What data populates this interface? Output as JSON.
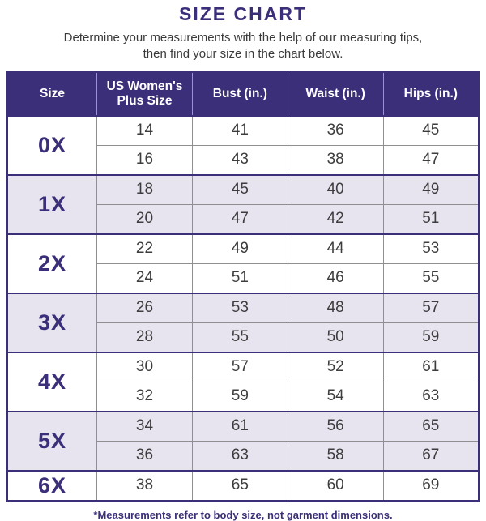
{
  "page": {
    "title": "SIZE CHART",
    "subtitle_line1": "Determine your measurements with the help of our measuring tips,",
    "subtitle_line2": "then find your size in the chart below.",
    "footnote": "*Measurements refer to body size, not garment dimensions."
  },
  "colors": {
    "accent": "#3B2F7A",
    "header_bg": "#3B2F7A",
    "header_text": "#FFFFFF",
    "alt_row_bg": "#E7E4EF",
    "grid_line": "#8F8F8F",
    "body_text": "#3D3D3D"
  },
  "chart_data": {
    "type": "table",
    "title": "SIZE CHART",
    "columns": [
      "Size",
      "US Women's Plus Size",
      "Bust (in.)",
      "Waist (in.)",
      "Hips (in.)"
    ],
    "groups": [
      {
        "size": "0X",
        "rows": [
          [
            14,
            41,
            36,
            45
          ],
          [
            16,
            43,
            38,
            47
          ]
        ]
      },
      {
        "size": "1X",
        "rows": [
          [
            18,
            45,
            40,
            49
          ],
          [
            20,
            47,
            42,
            51
          ]
        ]
      },
      {
        "size": "2X",
        "rows": [
          [
            22,
            49,
            44,
            53
          ],
          [
            24,
            51,
            46,
            55
          ]
        ]
      },
      {
        "size": "3X",
        "rows": [
          [
            26,
            53,
            48,
            57
          ],
          [
            28,
            55,
            50,
            59
          ]
        ]
      },
      {
        "size": "4X",
        "rows": [
          [
            30,
            57,
            52,
            61
          ],
          [
            32,
            59,
            54,
            63
          ]
        ]
      },
      {
        "size": "5X",
        "rows": [
          [
            34,
            61,
            56,
            65
          ],
          [
            36,
            63,
            58,
            67
          ]
        ]
      },
      {
        "size": "6X",
        "rows": [
          [
            38,
            65,
            60,
            69
          ]
        ]
      }
    ],
    "notes": "Groups with light lavender background: 1X, 3X, 5X; measurements in inches"
  }
}
